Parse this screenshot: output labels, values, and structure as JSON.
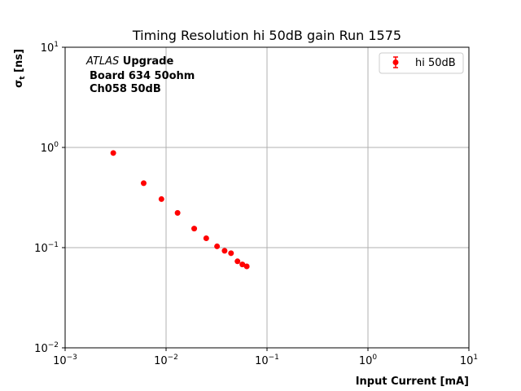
{
  "chart_data": {
    "type": "scatter",
    "title": "Timing Resolution hi 50dB gain Run 1575",
    "xlabel": "Input Current [mA]",
    "ylabel_main": "σ",
    "ylabel_sub": "t",
    "ylabel_unit": " [ns]",
    "xscale": "log",
    "yscale": "log",
    "xlim": [
      0.001,
      10
    ],
    "ylim": [
      0.01,
      10
    ],
    "grid": true,
    "legend_position": "upper-right",
    "x_ticks": [
      {
        "value": 0.001,
        "base": "10",
        "exp": "−3"
      },
      {
        "value": 0.01,
        "base": "10",
        "exp": "−2"
      },
      {
        "value": 0.1,
        "base": "10",
        "exp": "−1"
      },
      {
        "value": 1,
        "base": "10",
        "exp": "0"
      },
      {
        "value": 10,
        "base": "10",
        "exp": "1"
      }
    ],
    "y_ticks": [
      {
        "value": 0.01,
        "base": "10",
        "exp": "−2"
      },
      {
        "value": 0.1,
        "base": "10",
        "exp": "−1"
      },
      {
        "value": 1,
        "base": "10",
        "exp": "0"
      },
      {
        "value": 10,
        "base": "10",
        "exp": "1"
      }
    ],
    "annotation": {
      "atlas": "ATLAS",
      "upgrade": " Upgrade",
      "line2": "Board 634 50ohm",
      "line3": "Ch058 50dB"
    },
    "series": [
      {
        "name": "hi 50dB",
        "color": "#ff0000",
        "marker": "circle",
        "x": [
          0.003,
          0.006,
          0.009,
          0.013,
          0.019,
          0.025,
          0.032,
          0.038,
          0.044,
          0.051,
          0.057,
          0.063
        ],
        "y": [
          0.88,
          0.44,
          0.305,
          0.222,
          0.155,
          0.124,
          0.103,
          0.093,
          0.088,
          0.073,
          0.068,
          0.065
        ]
      }
    ]
  }
}
